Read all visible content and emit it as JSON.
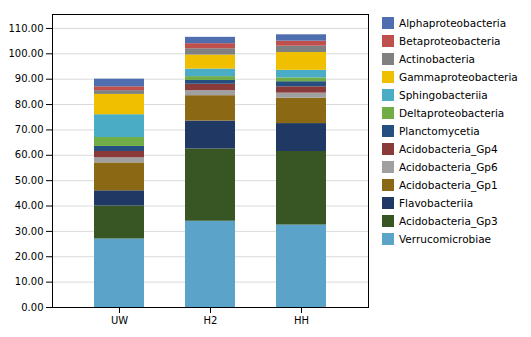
{
  "chart_data": {
    "type": "bar",
    "stacked": true,
    "categories": [
      "UW",
      "H2",
      "HH"
    ],
    "series": [
      {
        "name": "Alphaproteobacteria",
        "color": "#4F6EAF",
        "values": [
          3.0,
          2.5,
          2.5
        ]
      },
      {
        "name": "Betaproteobacteria",
        "color": "#C0504D",
        "values": [
          1.5,
          2.0,
          2.0
        ]
      },
      {
        "name": "Actinobacteria",
        "color": "#808080",
        "values": [
          1.5,
          2.5,
          2.5
        ]
      },
      {
        "name": "Gammaproteobacteria",
        "color": "#F0C000",
        "values": [
          8.0,
          5.5,
          7.0
        ]
      },
      {
        "name": "Sphingobacteriia",
        "color": "#4BACC6",
        "values": [
          9.0,
          3.0,
          3.0
        ]
      },
      {
        "name": "Deltaproteobacteria",
        "color": "#70AD47",
        "values": [
          3.5,
          1.5,
          1.5
        ]
      },
      {
        "name": "Planctomycetia",
        "color": "#244F7F",
        "values": [
          2.0,
          1.5,
          2.0
        ]
      },
      {
        "name": "Acidobacteria_Gp4",
        "color": "#8B3A3A",
        "values": [
          2.5,
          2.5,
          2.5
        ]
      },
      {
        "name": "Acidobacteria_Gp6",
        "color": "#A0A0A0",
        "values": [
          2.0,
          2.0,
          2.0
        ]
      },
      {
        "name": "Acidobacteria_Gp1",
        "color": "#8B6914",
        "values": [
          11.0,
          10.0,
          10.0
        ]
      },
      {
        "name": "Flavobacteriia",
        "color": "#1F3864",
        "values": [
          6.0,
          11.0,
          11.0
        ]
      },
      {
        "name": "Acidobacteria_Gp3",
        "color": "#375623",
        "values": [
          13.0,
          28.5,
          29.0
        ]
      },
      {
        "name": "Verrucomicrobiae",
        "color": "#5BA3C9",
        "values": [
          27.0,
          34.0,
          32.5
        ]
      }
    ],
    "ylim": [
      0,
      115.5
    ],
    "yticks": [
      {
        "value": 0,
        "label": "0.00"
      },
      {
        "value": 10,
        "label": "10.00"
      },
      {
        "value": 20,
        "label": "20.00"
      },
      {
        "value": 30,
        "label": "30.00"
      },
      {
        "value": 40,
        "label": "40.00"
      },
      {
        "value": 50,
        "label": "50.00"
      },
      {
        "value": 60,
        "label": "60.00"
      },
      {
        "value": 70,
        "label": "70.00"
      },
      {
        "value": 80,
        "label": "80.00"
      },
      {
        "value": 90,
        "label": "90.00"
      },
      {
        "value": 100,
        "label": "100.00"
      },
      {
        "value": 110,
        "label": "110.00"
      }
    ],
    "grid": true,
    "legend": "right"
  }
}
